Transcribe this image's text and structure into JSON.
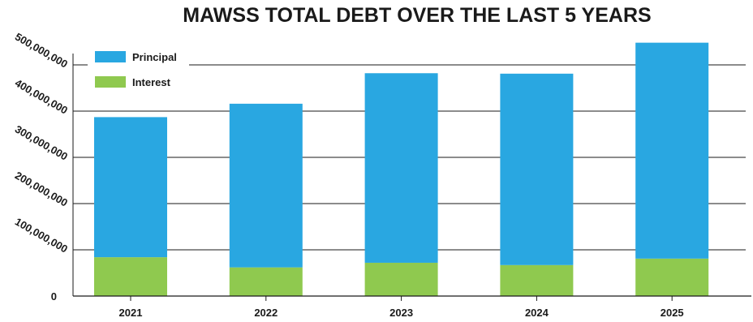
{
  "chart_data": {
    "type": "bar",
    "stacked": true,
    "title": "MAWSS TOTAL DEBT OVER THE LAST 5 YEARS",
    "xlabel": "",
    "ylabel": "",
    "categories": [
      "2021",
      "2022",
      "2023",
      "2024",
      "2025"
    ],
    "series": [
      {
        "name": "Interest",
        "color": "#8fc94f",
        "values": [
          84000000,
          62000000,
          72000000,
          67000000,
          81000000
        ]
      },
      {
        "name": "Principal",
        "color": "#29a7e1",
        "values": [
          303000000,
          354000000,
          410000000,
          414000000,
          467000000
        ]
      }
    ],
    "yticks": [
      0,
      100000000,
      200000000,
      300000000,
      400000000,
      500000000
    ],
    "ytick_labels": [
      "0",
      "100,000,000",
      "200,000,000",
      "300,000,000",
      "400,000,000",
      "500,000,000"
    ],
    "ylim": [
      0,
      500000000
    ],
    "grid": true,
    "legend_position": "top-left",
    "legend": [
      {
        "label": "Principal",
        "color": "#29a7e1"
      },
      {
        "label": "Interest",
        "color": "#8fc94f"
      }
    ]
  }
}
